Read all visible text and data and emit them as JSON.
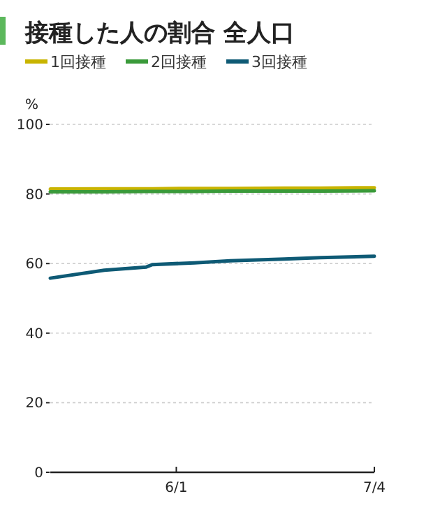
{
  "chart_data": {
    "type": "line",
    "title": "接種した人の割合 全人口",
    "ylabel": "%",
    "x": [
      "--05-11",
      "--05-20",
      "--05-27",
      "--05-28",
      "--06-04",
      "--06-10",
      "--06-19",
      "--06-25",
      "--07-04"
    ],
    "xlim": [
      "--05-11",
      "--07-04"
    ],
    "xticks": [
      {
        "value": "--06-01",
        "label": "6/1"
      },
      {
        "value": "--07-04",
        "label": "7/4"
      }
    ],
    "ylim": [
      0,
      100
    ],
    "yticks": [
      0,
      20,
      40,
      60,
      80,
      100
    ],
    "grid": "y",
    "legend": "top left",
    "marker": "none",
    "line_style": "solid",
    "series": [
      {
        "name": "1回接種",
        "color": "#c8b400",
        "values": [
          81.4,
          81.5,
          81.5,
          81.5,
          81.6,
          81.6,
          81.7,
          81.7,
          81.8
        ]
      },
      {
        "name": "2回接種",
        "color": "#3a9a3a",
        "values": [
          80.6,
          80.6,
          80.7,
          80.7,
          80.7,
          80.8,
          80.8,
          80.8,
          80.9
        ]
      },
      {
        "name": "3回接種",
        "color": "#0e5a75",
        "values": [
          55.8,
          58.1,
          59.0,
          59.7,
          60.2,
          60.8,
          61.3,
          61.7,
          62.1
        ]
      }
    ]
  }
}
